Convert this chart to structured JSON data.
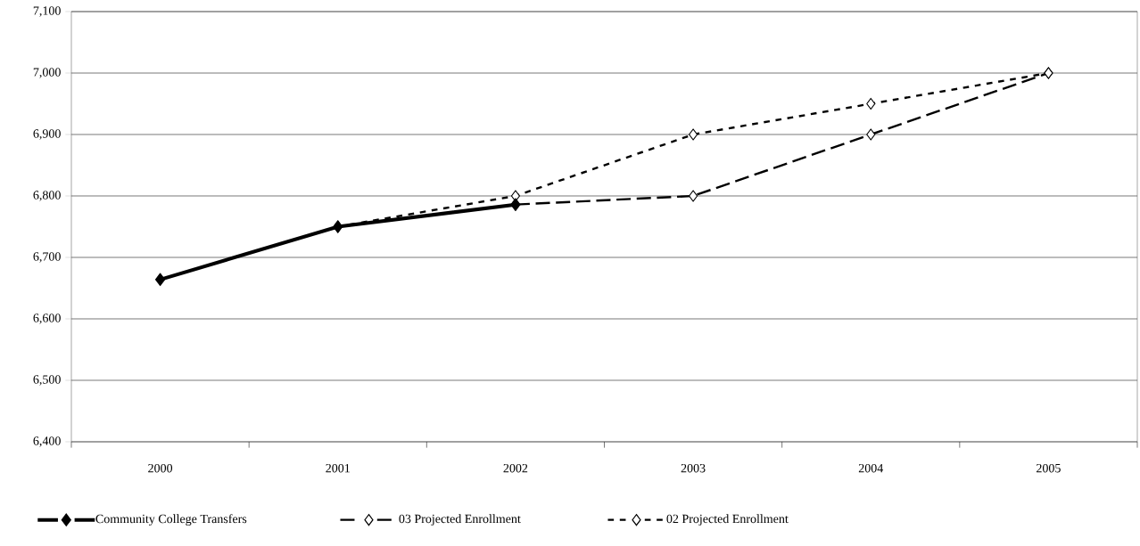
{
  "chart_data": {
    "type": "line",
    "categories": [
      "2000",
      "2001",
      "2002",
      "2003",
      "2004",
      "2005"
    ],
    "series": [
      {
        "name": "Community College Transfers",
        "color": "#000000",
        "values": [
          6664,
          6750,
          6786,
          null,
          null,
          null
        ],
        "marker": "diamond",
        "line_style": "solid"
      },
      {
        "name": "03 Projected Enrollment",
        "color": "#000000",
        "values": [
          null,
          null,
          6786,
          6800,
          6900,
          7000
        ],
        "marker": "diamond",
        "line_style": "dashed"
      },
      {
        "name": "02 Projected Enrollment",
        "color": "#000000",
        "values": [
          null,
          6750,
          6800,
          6900,
          6950,
          7000
        ],
        "marker": "diamond",
        "line_style": "dotted"
      }
    ],
    "ylim": [
      6400,
      7100
    ],
    "yticks": [
      {
        "value": 6400,
        "label": "6,400"
      },
      {
        "value": 6500,
        "label": "6,500"
      },
      {
        "value": 6600,
        "label": "6,600"
      },
      {
        "value": 6700,
        "label": "6,700"
      },
      {
        "value": 6800,
        "label": "6,800"
      },
      {
        "value": 6900,
        "label": "6,900"
      },
      {
        "value": 7000,
        "label": "7,000"
      },
      {
        "value": 7100,
        "label": "7,100"
      }
    ],
    "grid": "y",
    "legend": "bottom"
  }
}
